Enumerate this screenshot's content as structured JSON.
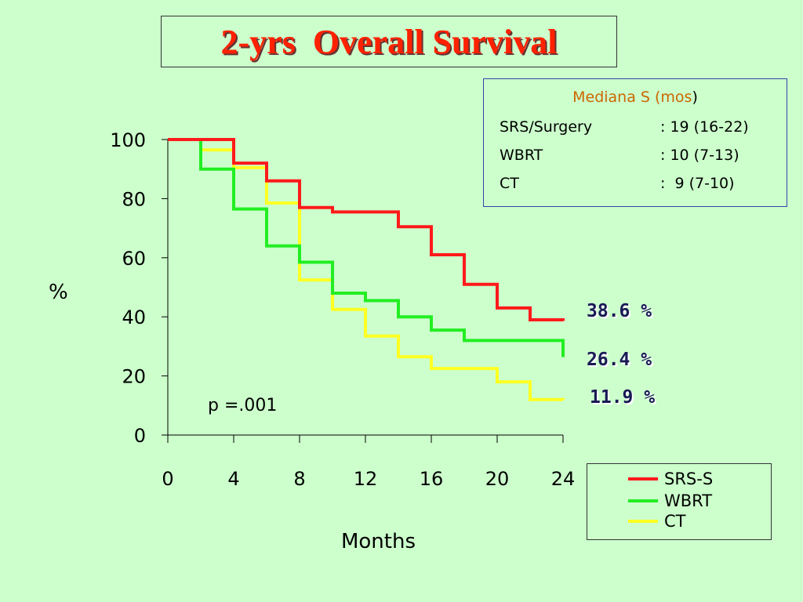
{
  "title": "2-yrs  Overall Survival",
  "median_box": {
    "title": "Mediana S (mos",
    "title_close": ")",
    "rows": [
      {
        "label": "SRS/Surgery",
        "value": ": 19 (16-22)"
      },
      {
        "label": "WBRT",
        "value": ": 10 (7-13)"
      },
      {
        "label": "CT",
        "value": ":  9 (7-10)"
      }
    ]
  },
  "p_value": "p =.001",
  "end_labels": [
    "38.6 %",
    "26.4 %",
    "11.9 %"
  ],
  "colors": {
    "srs": "#ff1a1a",
    "wbrt": "#22ee22",
    "ct": "#ffff22",
    "title": "#ff2200"
  },
  "chart_data": {
    "type": "line",
    "title": "2-yrs  Overall Survival",
    "xlabel": "Months",
    "ylabel": "%",
    "xlim": [
      0,
      24
    ],
    "ylim": [
      0,
      100
    ],
    "x_ticks": [
      "0",
      "4",
      "8",
      "12",
      "16",
      "20",
      "24"
    ],
    "y_ticks": [
      "100",
      "80",
      "60",
      "40",
      "20",
      "0"
    ],
    "step": true,
    "legend_position": "bottom-right",
    "series": [
      {
        "name": "SRS-S",
        "color": "#ff1a1a",
        "points": [
          [
            0,
            100
          ],
          [
            4,
            92
          ],
          [
            6,
            86
          ],
          [
            8,
            77
          ],
          [
            10,
            75.5
          ],
          [
            14,
            70.5
          ],
          [
            16,
            61
          ],
          [
            18,
            51
          ],
          [
            20,
            43
          ],
          [
            22,
            39
          ],
          [
            24,
            38.6
          ]
        ]
      },
      {
        "name": "WBRT",
        "color": "#22ee22",
        "points": [
          [
            0,
            100
          ],
          [
            2,
            90
          ],
          [
            4,
            76.5
          ],
          [
            6,
            64
          ],
          [
            8,
            58.5
          ],
          [
            10,
            48
          ],
          [
            12,
            45.5
          ],
          [
            14,
            40
          ],
          [
            16,
            35.5
          ],
          [
            18,
            32
          ],
          [
            24,
            26.4
          ]
        ]
      },
      {
        "name": "CT",
        "color": "#ffff22",
        "points": [
          [
            0,
            100
          ],
          [
            2,
            96.5
          ],
          [
            4,
            90.5
          ],
          [
            6,
            78.5
          ],
          [
            8,
            52.5
          ],
          [
            10,
            42.5
          ],
          [
            12,
            33.5
          ],
          [
            14,
            26.5
          ],
          [
            16,
            22.5
          ],
          [
            20,
            18
          ],
          [
            22,
            12
          ],
          [
            24,
            11.9
          ]
        ]
      }
    ]
  }
}
